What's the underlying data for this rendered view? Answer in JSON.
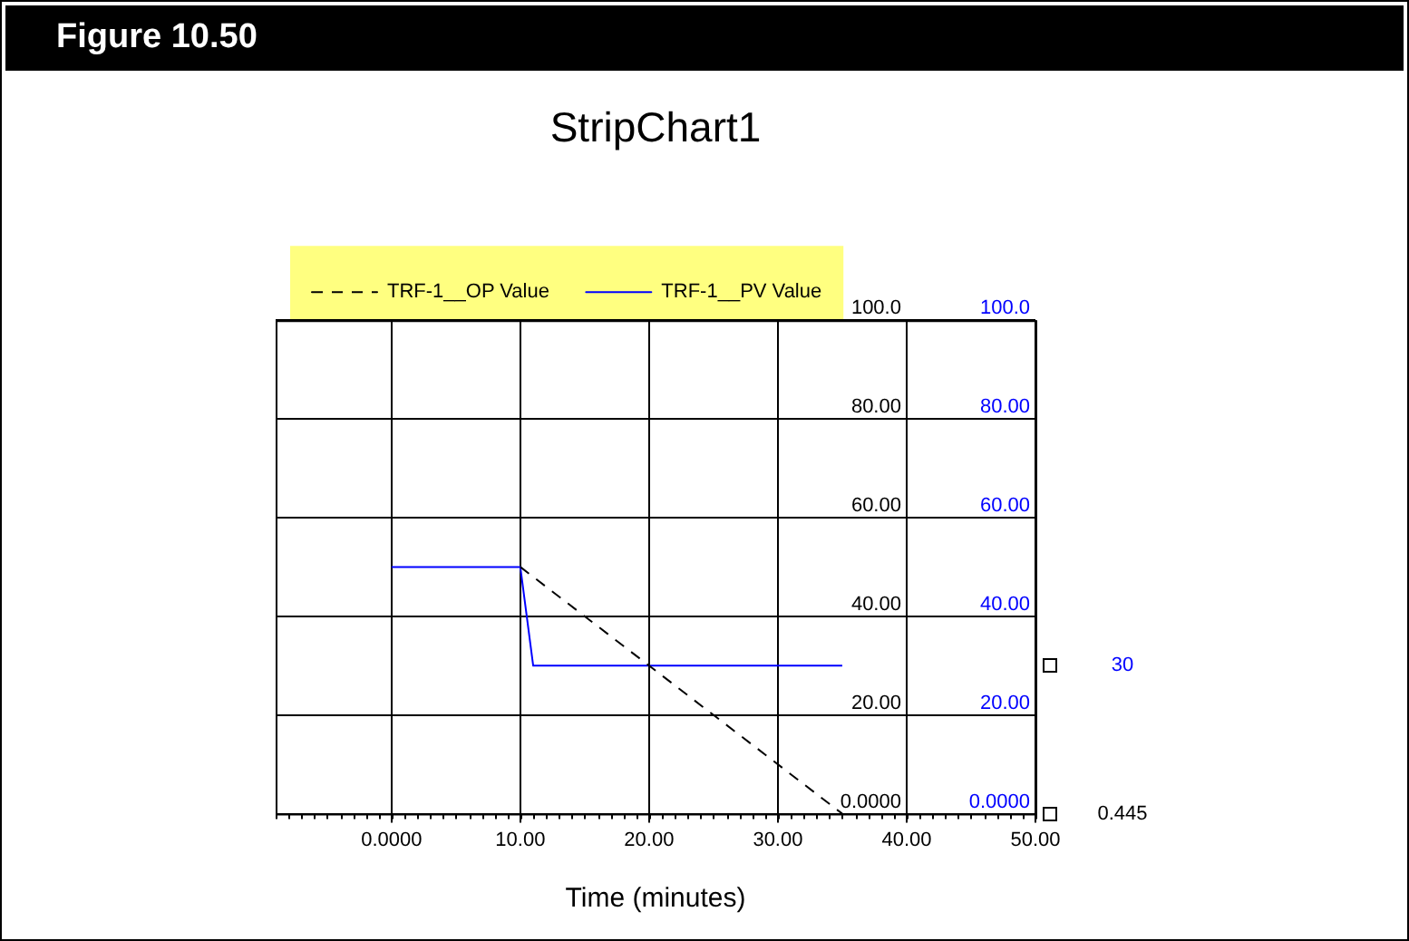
{
  "chart_data": {
    "type": "line",
    "title": "StripChart1",
    "xlabel": "Time (minutes)",
    "annotations": [
      "Figure 10.50",
      "30",
      "0.445"
    ],
    "xlim": [
      -9,
      50
    ],
    "xticks": [
      {
        "value": 0,
        "label": "0.0000"
      },
      {
        "value": 10,
        "label": "10.00"
      },
      {
        "value": 20,
        "label": "20.00"
      },
      {
        "value": 30,
        "label": "30.00"
      },
      {
        "value": 40,
        "label": "40.00"
      },
      {
        "value": 50,
        "label": "50.00"
      }
    ],
    "ylim": [
      0,
      100
    ],
    "yticks": [
      {
        "value": 0,
        "label": "0.0000"
      },
      {
        "value": 20,
        "label": "20.00"
      },
      {
        "value": 40,
        "label": "40.00"
      },
      {
        "value": 60,
        "label": "60.00"
      },
      {
        "value": 80,
        "label": "80.00"
      },
      {
        "value": 100,
        "label": "100.0"
      }
    ],
    "y2lim": [
      0,
      100
    ],
    "y2ticks": [
      {
        "value": 0,
        "label": "0.0000"
      },
      {
        "value": 20,
        "label": "20.00"
      },
      {
        "value": 40,
        "label": "40.00"
      },
      {
        "value": 60,
        "label": "60.00"
      },
      {
        "value": 80,
        "label": "80.00"
      },
      {
        "value": 100,
        "label": "100.0"
      }
    ],
    "grid": true,
    "legend": "top left",
    "marker": "none",
    "series": [
      {
        "name": "TRF-1__OP Value",
        "color": "#000000",
        "line_style": "dashed",
        "x": [
          10,
          35
        ],
        "values": [
          50,
          0
        ]
      },
      {
        "name": "TRF-1__PV Value",
        "color": "#0000ff",
        "line_style": "solid",
        "axis": "y2",
        "x": [
          0,
          10,
          11,
          35
        ],
        "values": [
          50,
          50,
          30,
          30
        ]
      }
    ]
  }
}
